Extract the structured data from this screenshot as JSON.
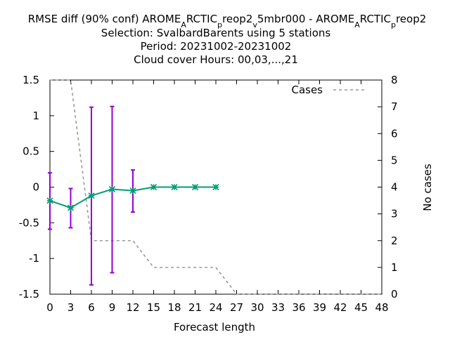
{
  "chart_data": {
    "type": "line",
    "title_lines": [
      "RMSE diff (90% conf) AROME_ARCTIC_preop2_v5mbr000 - AROME_ARCTIC_preop2",
      "Selection: SvalbardBarents using      5 stations",
      "Period: 20231002-20231002",
      "Cloud cover   Hours:  00,03,...,21"
    ],
    "xlabel": "Forecast length",
    "ylabel_left": "",
    "ylabel_right": "No cases",
    "xlim": [
      0,
      48
    ],
    "ylim_left": [
      -1.5,
      1.5
    ],
    "ylim_right": [
      0,
      8
    ],
    "x_ticks": [
      0,
      3,
      6,
      9,
      12,
      15,
      18,
      21,
      24,
      27,
      30,
      33,
      36,
      39,
      42,
      45,
      48
    ],
    "y_ticks_left": [
      "1.5",
      "1",
      "0.5",
      "0",
      "-0.5",
      "-1",
      "-1.5"
    ],
    "y_ticks_right": [
      "8",
      "7",
      "6",
      "5",
      "4",
      "3",
      "2",
      "1",
      "0"
    ],
    "grid": false,
    "legend_position": "top-right",
    "series": [
      {
        "name": "",
        "axis": "left",
        "color": "#009e73",
        "marker": "star",
        "x": [
          0,
          3,
          6,
          9,
          12,
          15,
          18,
          21,
          24
        ],
        "y": [
          -0.19,
          -0.29,
          -0.12,
          -0.03,
          -0.05,
          0.0,
          0.0,
          0.0,
          0.0
        ]
      },
      {
        "name": "Cases",
        "axis": "right",
        "color": "#999999",
        "dash": "dashed",
        "x": [
          0,
          3,
          6,
          9,
          12,
          15,
          18,
          21,
          24,
          27,
          30,
          33,
          36,
          39,
          42,
          45,
          48
        ],
        "y": [
          8,
          8,
          2,
          2,
          2,
          1,
          1,
          1,
          1,
          0,
          0,
          0,
          0,
          0,
          0,
          0,
          0
        ]
      }
    ],
    "error_bars": {
      "color": "#9400d3",
      "x": [
        0,
        3,
        6,
        9,
        12
      ],
      "low": [
        -0.59,
        -0.57,
        -1.37,
        -1.2,
        -0.35
      ],
      "high": [
        0.2,
        -0.02,
        1.12,
        1.13,
        0.24
      ]
    }
  }
}
